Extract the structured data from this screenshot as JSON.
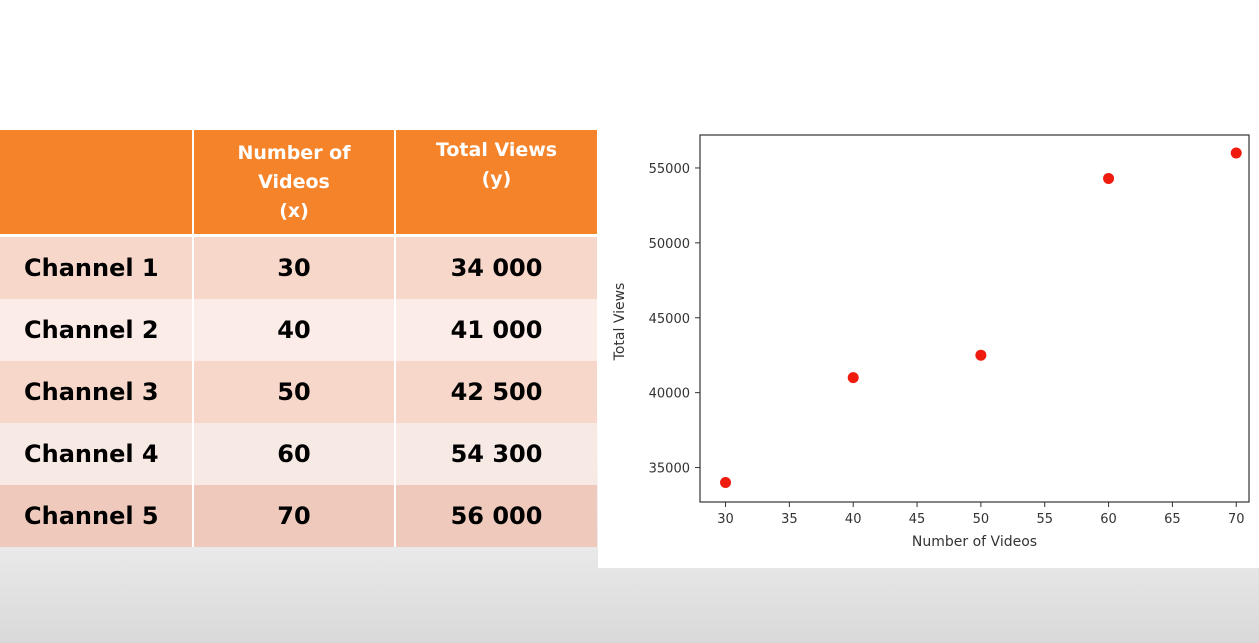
{
  "table": {
    "headers": [
      {
        "lines": []
      },
      {
        "lines": [
          "Number of",
          "Videos",
          "(x)"
        ]
      },
      {
        "lines": [
          "Total Views",
          "(y)"
        ]
      }
    ],
    "rows": [
      {
        "label": "Channel 1",
        "x": "30",
        "y": "34 000"
      },
      {
        "label": "Channel 2",
        "x": "40",
        "y": "41 000"
      },
      {
        "label": "Channel 3",
        "x": "50",
        "y": "42 500"
      },
      {
        "label": "Channel 4",
        "x": "60",
        "y": "54 300"
      },
      {
        "label": "Channel 5",
        "x": "70",
        "y": "56 000"
      }
    ],
    "colors": {
      "header": "#f5832a",
      "row_dark": "#f8d7cb",
      "row_light": "#fbece7"
    }
  },
  "chart_data": {
    "type": "scatter",
    "xlabel": "Number of Videos",
    "ylabel": "Total Views",
    "x": [
      30,
      40,
      50,
      60,
      70
    ],
    "y": [
      34000,
      41000,
      42500,
      54300,
      56000
    ],
    "xlim": [
      28,
      71
    ],
    "ylim": [
      32700,
      57200
    ],
    "x_ticks": [
      30,
      35,
      40,
      45,
      50,
      55,
      60,
      65,
      70
    ],
    "y_ticks": [
      35000,
      40000,
      45000,
      50000,
      55000
    ],
    "marker_color": "#ee1b0e",
    "grid": false
  }
}
